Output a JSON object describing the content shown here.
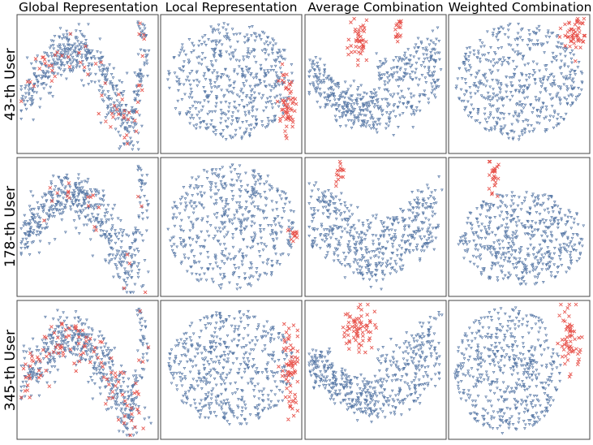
{
  "colors": {
    "users": "#5b7ba8",
    "highlight": "#e8554e",
    "frame": "#444444",
    "background": "#ffffff"
  },
  "chart_data": {
    "type": "scatter",
    "title": "",
    "columns": [
      "Global Representation",
      "Local Representation",
      "Average Combination",
      "Weighted Combination"
    ],
    "rows": [
      "43-th User",
      "178-th User",
      "345-th User"
    ],
    "axes": {
      "x_ticks": "none",
      "y_ticks": "none",
      "grid": false
    },
    "series": [
      {
        "marker": "tri_down",
        "color": "#5b7ba8"
      },
      {
        "marker": "x",
        "color": "#e8554e"
      }
    ],
    "panels": [
      [
        {
          "shape": "s-curve",
          "highlight": "spread"
        },
        {
          "shape": "blob",
          "highlight": "right-cluster-large"
        },
        {
          "shape": "valley",
          "highlight": "top-clusters"
        },
        {
          "shape": "blob",
          "highlight": "top-right-cluster"
        }
      ],
      [
        {
          "shape": "s-curve",
          "highlight": "sparse"
        },
        {
          "shape": "disk",
          "highlight": "right-small"
        },
        {
          "shape": "valley-b",
          "highlight": "top-small"
        },
        {
          "shape": "blob-b",
          "highlight": "top-column"
        }
      ],
      [
        {
          "shape": "s-curve",
          "highlight": "dense-spread"
        },
        {
          "shape": "blob",
          "highlight": "right-tall"
        },
        {
          "shape": "valley",
          "highlight": "top-left-cluster"
        },
        {
          "shape": "blob-c",
          "highlight": "right-cluster"
        }
      ]
    ]
  }
}
